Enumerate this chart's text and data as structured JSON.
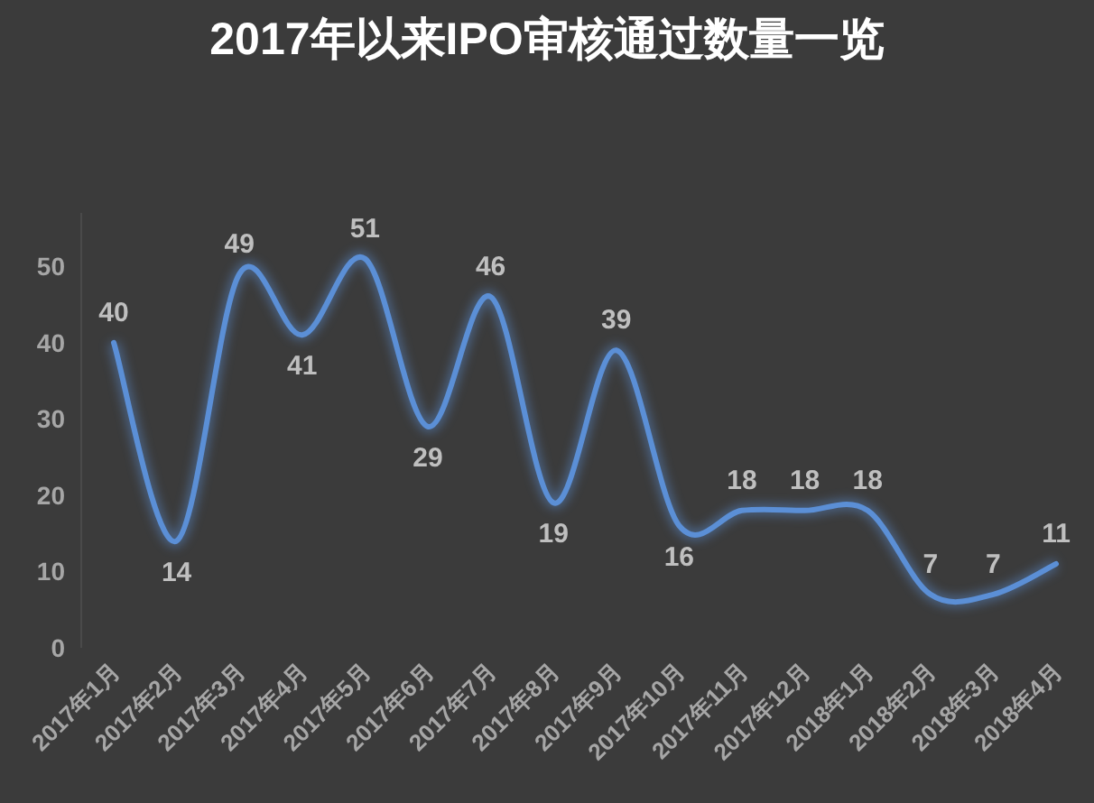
{
  "chart_data": {
    "type": "line",
    "title": "2017年以来IPO审核通过数量一览",
    "categories": [
      "2017年1月",
      "2017年2月",
      "2017年3月",
      "2017年4月",
      "2017年5月",
      "2017年6月",
      "2017年7月",
      "2017年8月",
      "2017年9月",
      "2017年10月",
      "2017年11月",
      "2017年12月",
      "2018年1月",
      "2018年2月",
      "2018年3月",
      "2018年4月"
    ],
    "series": [
      {
        "color": "#5b8fd6",
        "values": [
          40,
          14,
          49,
          41,
          51,
          29,
          46,
          19,
          39,
          16,
          18,
          18,
          18,
          7,
          7,
          11
        ]
      }
    ],
    "ylim": [
      0,
      57
    ],
    "yticks": [
      0,
      10,
      20,
      30,
      40,
      50
    ],
    "data_labels": true,
    "grid": false,
    "marker": "none",
    "line_style": "solid"
  }
}
